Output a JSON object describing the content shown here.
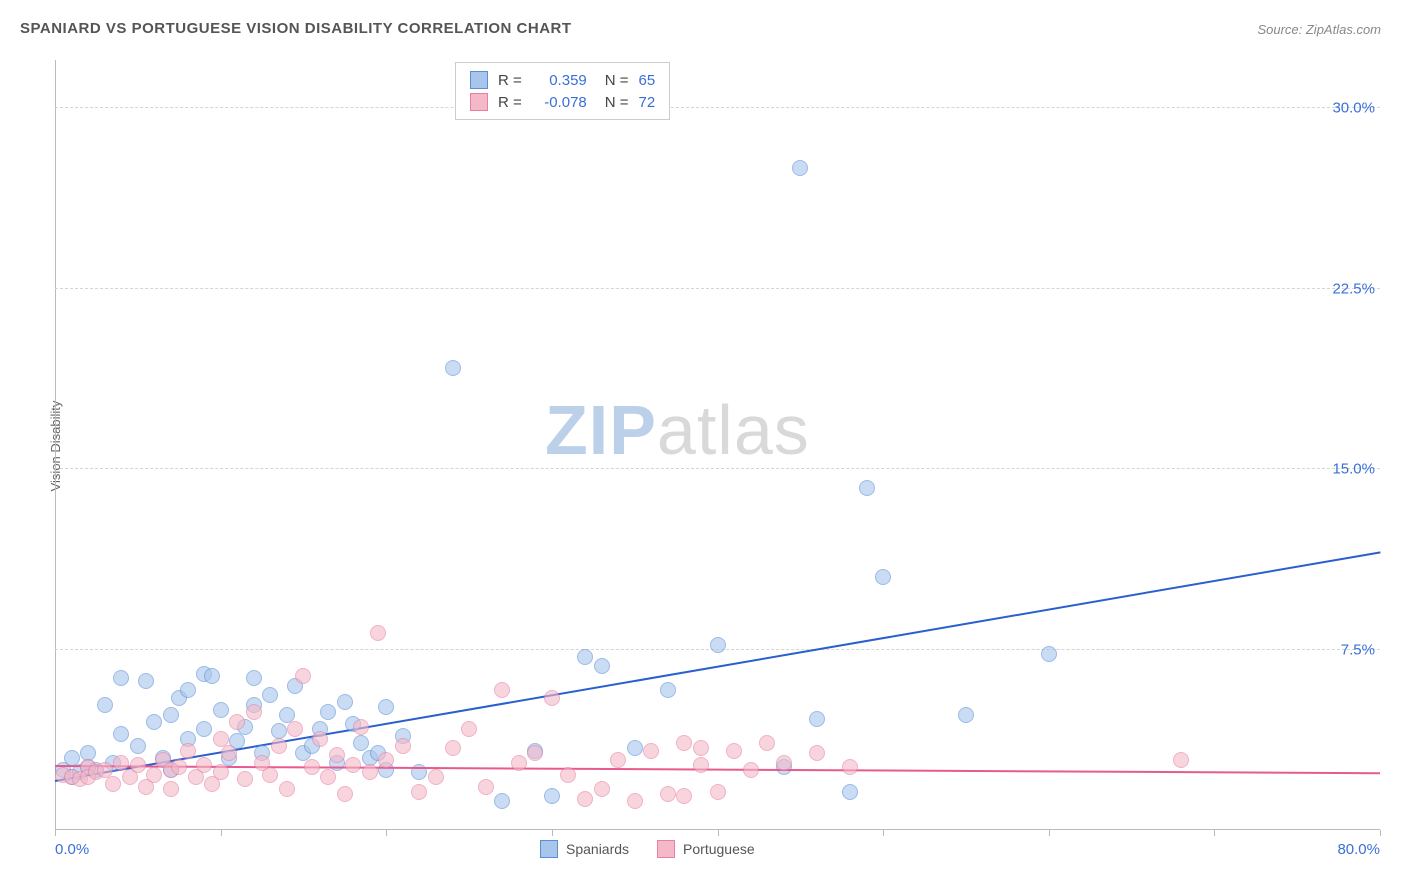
{
  "title": "SPANIARD VS PORTUGUESE VISION DISABILITY CORRELATION CHART",
  "source": "Source: ZipAtlas.com",
  "y_axis_label": "Vision Disability",
  "chart": {
    "type": "scatter",
    "xlim": [
      0,
      80
    ],
    "ylim": [
      0,
      32
    ],
    "x_ticks": [
      0,
      10,
      20,
      30,
      40,
      50,
      60,
      70,
      80
    ],
    "x_tick_labels": {
      "0": "0.0%",
      "80": "80.0%"
    },
    "x_tick_label_color": "#3a6fd8",
    "y_ticks": [
      7.5,
      15.0,
      22.5,
      30.0
    ],
    "y_tick_labels": [
      "7.5%",
      "15.0%",
      "22.5%",
      "30.0%"
    ],
    "y_tick_label_color": "#3a6fd8",
    "grid_color": "#d5d5d5",
    "axis_color": "#bbbbbb",
    "background_color": "#ffffff",
    "marker_radius": 8,
    "marker_border_width": 1,
    "series": [
      {
        "name": "Spaniards",
        "fill": "#a8c5ec",
        "stroke": "#5a8fd6",
        "fill_opacity": 0.6,
        "r_value": "0.359",
        "n_value": "65",
        "trend": {
          "x1": 0,
          "y1": 2.0,
          "x2": 80,
          "y2": 11.5,
          "color": "#2a5fcf",
          "width": 2
        },
        "points": [
          [
            0.5,
            2.5
          ],
          [
            1,
            3
          ],
          [
            1,
            2.2
          ],
          [
            1.5,
            2.4
          ],
          [
            2,
            2.6
          ],
          [
            2,
            3.2
          ],
          [
            2.5,
            2.5
          ],
          [
            3,
            5.2
          ],
          [
            3.5,
            2.8
          ],
          [
            4,
            6.3
          ],
          [
            4,
            4
          ],
          [
            5,
            3.5
          ],
          [
            5.5,
            6.2
          ],
          [
            6,
            4.5
          ],
          [
            6.5,
            3
          ],
          [
            7,
            4.8
          ],
          [
            7,
            2.5
          ],
          [
            7.5,
            5.5
          ],
          [
            8,
            5.8
          ],
          [
            8,
            3.8
          ],
          [
            9,
            6.5
          ],
          [
            9,
            4.2
          ],
          [
            9.5,
            6.4
          ],
          [
            10,
            5
          ],
          [
            10.5,
            3
          ],
          [
            11,
            3.7
          ],
          [
            11.5,
            4.3
          ],
          [
            12,
            5.2
          ],
          [
            12,
            6.3
          ],
          [
            12.5,
            3.2
          ],
          [
            13,
            5.6
          ],
          [
            13.5,
            4.1
          ],
          [
            14,
            4.8
          ],
          [
            14.5,
            6
          ],
          [
            15,
            3.2
          ],
          [
            15.5,
            3.5
          ],
          [
            16,
            4.2
          ],
          [
            16.5,
            4.9
          ],
          [
            17,
            2.8
          ],
          [
            17.5,
            5.3
          ],
          [
            18,
            4.4
          ],
          [
            18.5,
            3.6
          ],
          [
            19,
            3
          ],
          [
            19.5,
            3.2
          ],
          [
            20,
            5.1
          ],
          [
            20,
            2.5
          ],
          [
            21,
            3.9
          ],
          [
            22,
            2.4
          ],
          [
            24,
            19.2
          ],
          [
            27,
            1.2
          ],
          [
            29,
            3.3
          ],
          [
            30,
            1.4
          ],
          [
            32,
            7.2
          ],
          [
            33,
            6.8
          ],
          [
            35,
            3.4
          ],
          [
            37,
            5.8
          ],
          [
            40,
            7.7
          ],
          [
            44,
            2.6
          ],
          [
            45,
            27.5
          ],
          [
            46,
            4.6
          ],
          [
            48,
            1.6
          ],
          [
            49,
            14.2
          ],
          [
            50,
            10.5
          ],
          [
            55,
            4.8
          ],
          [
            60,
            7.3
          ]
        ]
      },
      {
        "name": "Portuguese",
        "fill": "#f4b8c8",
        "stroke": "#e77fa3",
        "fill_opacity": 0.6,
        "r_value": "-0.078",
        "n_value": "72",
        "trend": {
          "x1": 0,
          "y1": 2.6,
          "x2": 80,
          "y2": 2.3,
          "color": "#e85a8f",
          "width": 2
        },
        "points": [
          [
            0.5,
            2.3
          ],
          [
            1,
            2.2
          ],
          [
            1.5,
            2.1
          ],
          [
            2,
            2.6
          ],
          [
            2,
            2.2
          ],
          [
            2.5,
            2.4
          ],
          [
            3,
            2.5
          ],
          [
            3.5,
            1.9
          ],
          [
            4,
            2.8
          ],
          [
            4.5,
            2.2
          ],
          [
            5,
            2.7
          ],
          [
            5.5,
            1.8
          ],
          [
            6,
            2.3
          ],
          [
            6.5,
            2.9
          ],
          [
            7,
            2.5
          ],
          [
            7,
            1.7
          ],
          [
            7.5,
            2.6
          ],
          [
            8,
            3.3
          ],
          [
            8.5,
            2.2
          ],
          [
            9,
            2.7
          ],
          [
            9.5,
            1.9
          ],
          [
            10,
            3.8
          ],
          [
            10,
            2.4
          ],
          [
            10.5,
            3.2
          ],
          [
            11,
            4.5
          ],
          [
            11.5,
            2.1
          ],
          [
            12,
            4.9
          ],
          [
            12.5,
            2.8
          ],
          [
            13,
            2.3
          ],
          [
            13.5,
            3.5
          ],
          [
            14,
            1.7
          ],
          [
            14.5,
            4.2
          ],
          [
            15,
            6.4
          ],
          [
            15.5,
            2.6
          ],
          [
            16,
            3.8
          ],
          [
            16.5,
            2.2
          ],
          [
            17,
            3.1
          ],
          [
            17.5,
            1.5
          ],
          [
            18,
            2.7
          ],
          [
            18.5,
            4.3
          ],
          [
            19,
            2.4
          ],
          [
            19.5,
            8.2
          ],
          [
            20,
            2.9
          ],
          [
            21,
            3.5
          ],
          [
            22,
            1.6
          ],
          [
            23,
            2.2
          ],
          [
            24,
            3.4
          ],
          [
            25,
            4.2
          ],
          [
            26,
            1.8
          ],
          [
            27,
            5.8
          ],
          [
            28,
            2.8
          ],
          [
            29,
            3.2
          ],
          [
            30,
            5.5
          ],
          [
            31,
            2.3
          ],
          [
            32,
            1.3
          ],
          [
            33,
            1.7
          ],
          [
            34,
            2.9
          ],
          [
            35,
            1.2
          ],
          [
            36,
            3.3
          ],
          [
            37,
            1.5
          ],
          [
            38,
            3.6
          ],
          [
            38,
            1.4
          ],
          [
            39,
            2.7
          ],
          [
            39,
            3.4
          ],
          [
            40,
            1.6
          ],
          [
            41,
            3.3
          ],
          [
            42,
            2.5
          ],
          [
            43,
            3.6
          ],
          [
            44,
            2.8
          ],
          [
            46,
            3.2
          ],
          [
            48,
            2.6
          ],
          [
            68,
            2.9
          ]
        ]
      }
    ]
  },
  "stats_box": {
    "r_label": "R  =",
    "n_label": "N  =",
    "value_color": "#3a6fd8"
  },
  "legend": [
    {
      "label": "Spaniards",
      "fill": "#a8c5ec",
      "stroke": "#5a8fd6"
    },
    {
      "label": "Portuguese",
      "fill": "#f4b8c8",
      "stroke": "#e77fa3"
    }
  ],
  "watermark": {
    "zip": "ZIP",
    "atlas": "atlas",
    "zip_color": "#bcd0ea",
    "atlas_color": "#d9d9d9"
  }
}
